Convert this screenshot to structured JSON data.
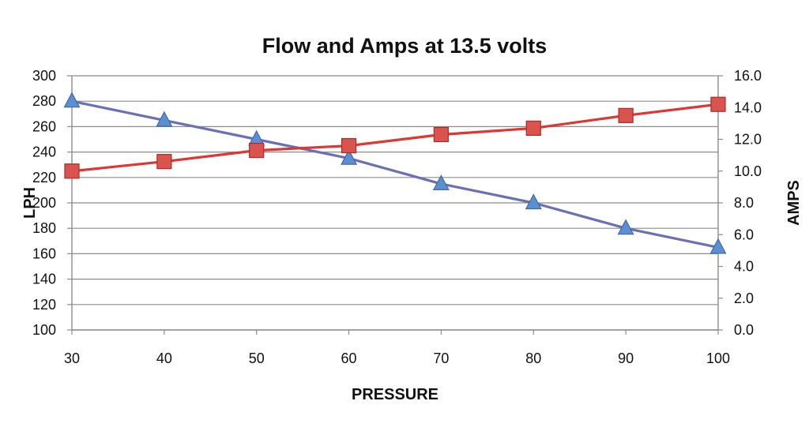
{
  "chart_data": {
    "type": "line",
    "title": "Flow and Amps at 13.5 volts",
    "xlabel": "PRESSURE",
    "ylabel": "LPH",
    "y2label": "AMPS",
    "x": [
      30,
      40,
      50,
      60,
      70,
      80,
      90,
      100
    ],
    "xlim": [
      30,
      100
    ],
    "ylim": [
      100,
      300
    ],
    "y2lim": [
      0,
      16
    ],
    "x_ticks": [
      "30",
      "40",
      "50",
      "60",
      "70",
      "80",
      "90",
      "100"
    ],
    "y_ticks": [
      "100",
      "120",
      "140",
      "160",
      "180",
      "200",
      "220",
      "240",
      "260",
      "280",
      "300"
    ],
    "y2_ticks": [
      "0.0",
      "2.0",
      "4.0",
      "6.0",
      "8.0",
      "10.0",
      "12.0",
      "14.0",
      "16.0"
    ],
    "grid": true,
    "legend": "none",
    "series": [
      {
        "axis": "left",
        "marker": "triangle",
        "color": "#6b6fb5",
        "marker_fill": "#5b8fd0",
        "marker_stroke": "#3e6aa8",
        "values": [
          280,
          265,
          250,
          235,
          215,
          200,
          180,
          165
        ]
      },
      {
        "axis": "right",
        "marker": "square",
        "color": "#e03530",
        "marker_fill": "#d9534f",
        "marker_stroke": "#b02a26",
        "values": [
          10.0,
          10.6,
          11.3,
          11.6,
          12.3,
          12.7,
          13.5,
          14.2
        ]
      }
    ]
  }
}
